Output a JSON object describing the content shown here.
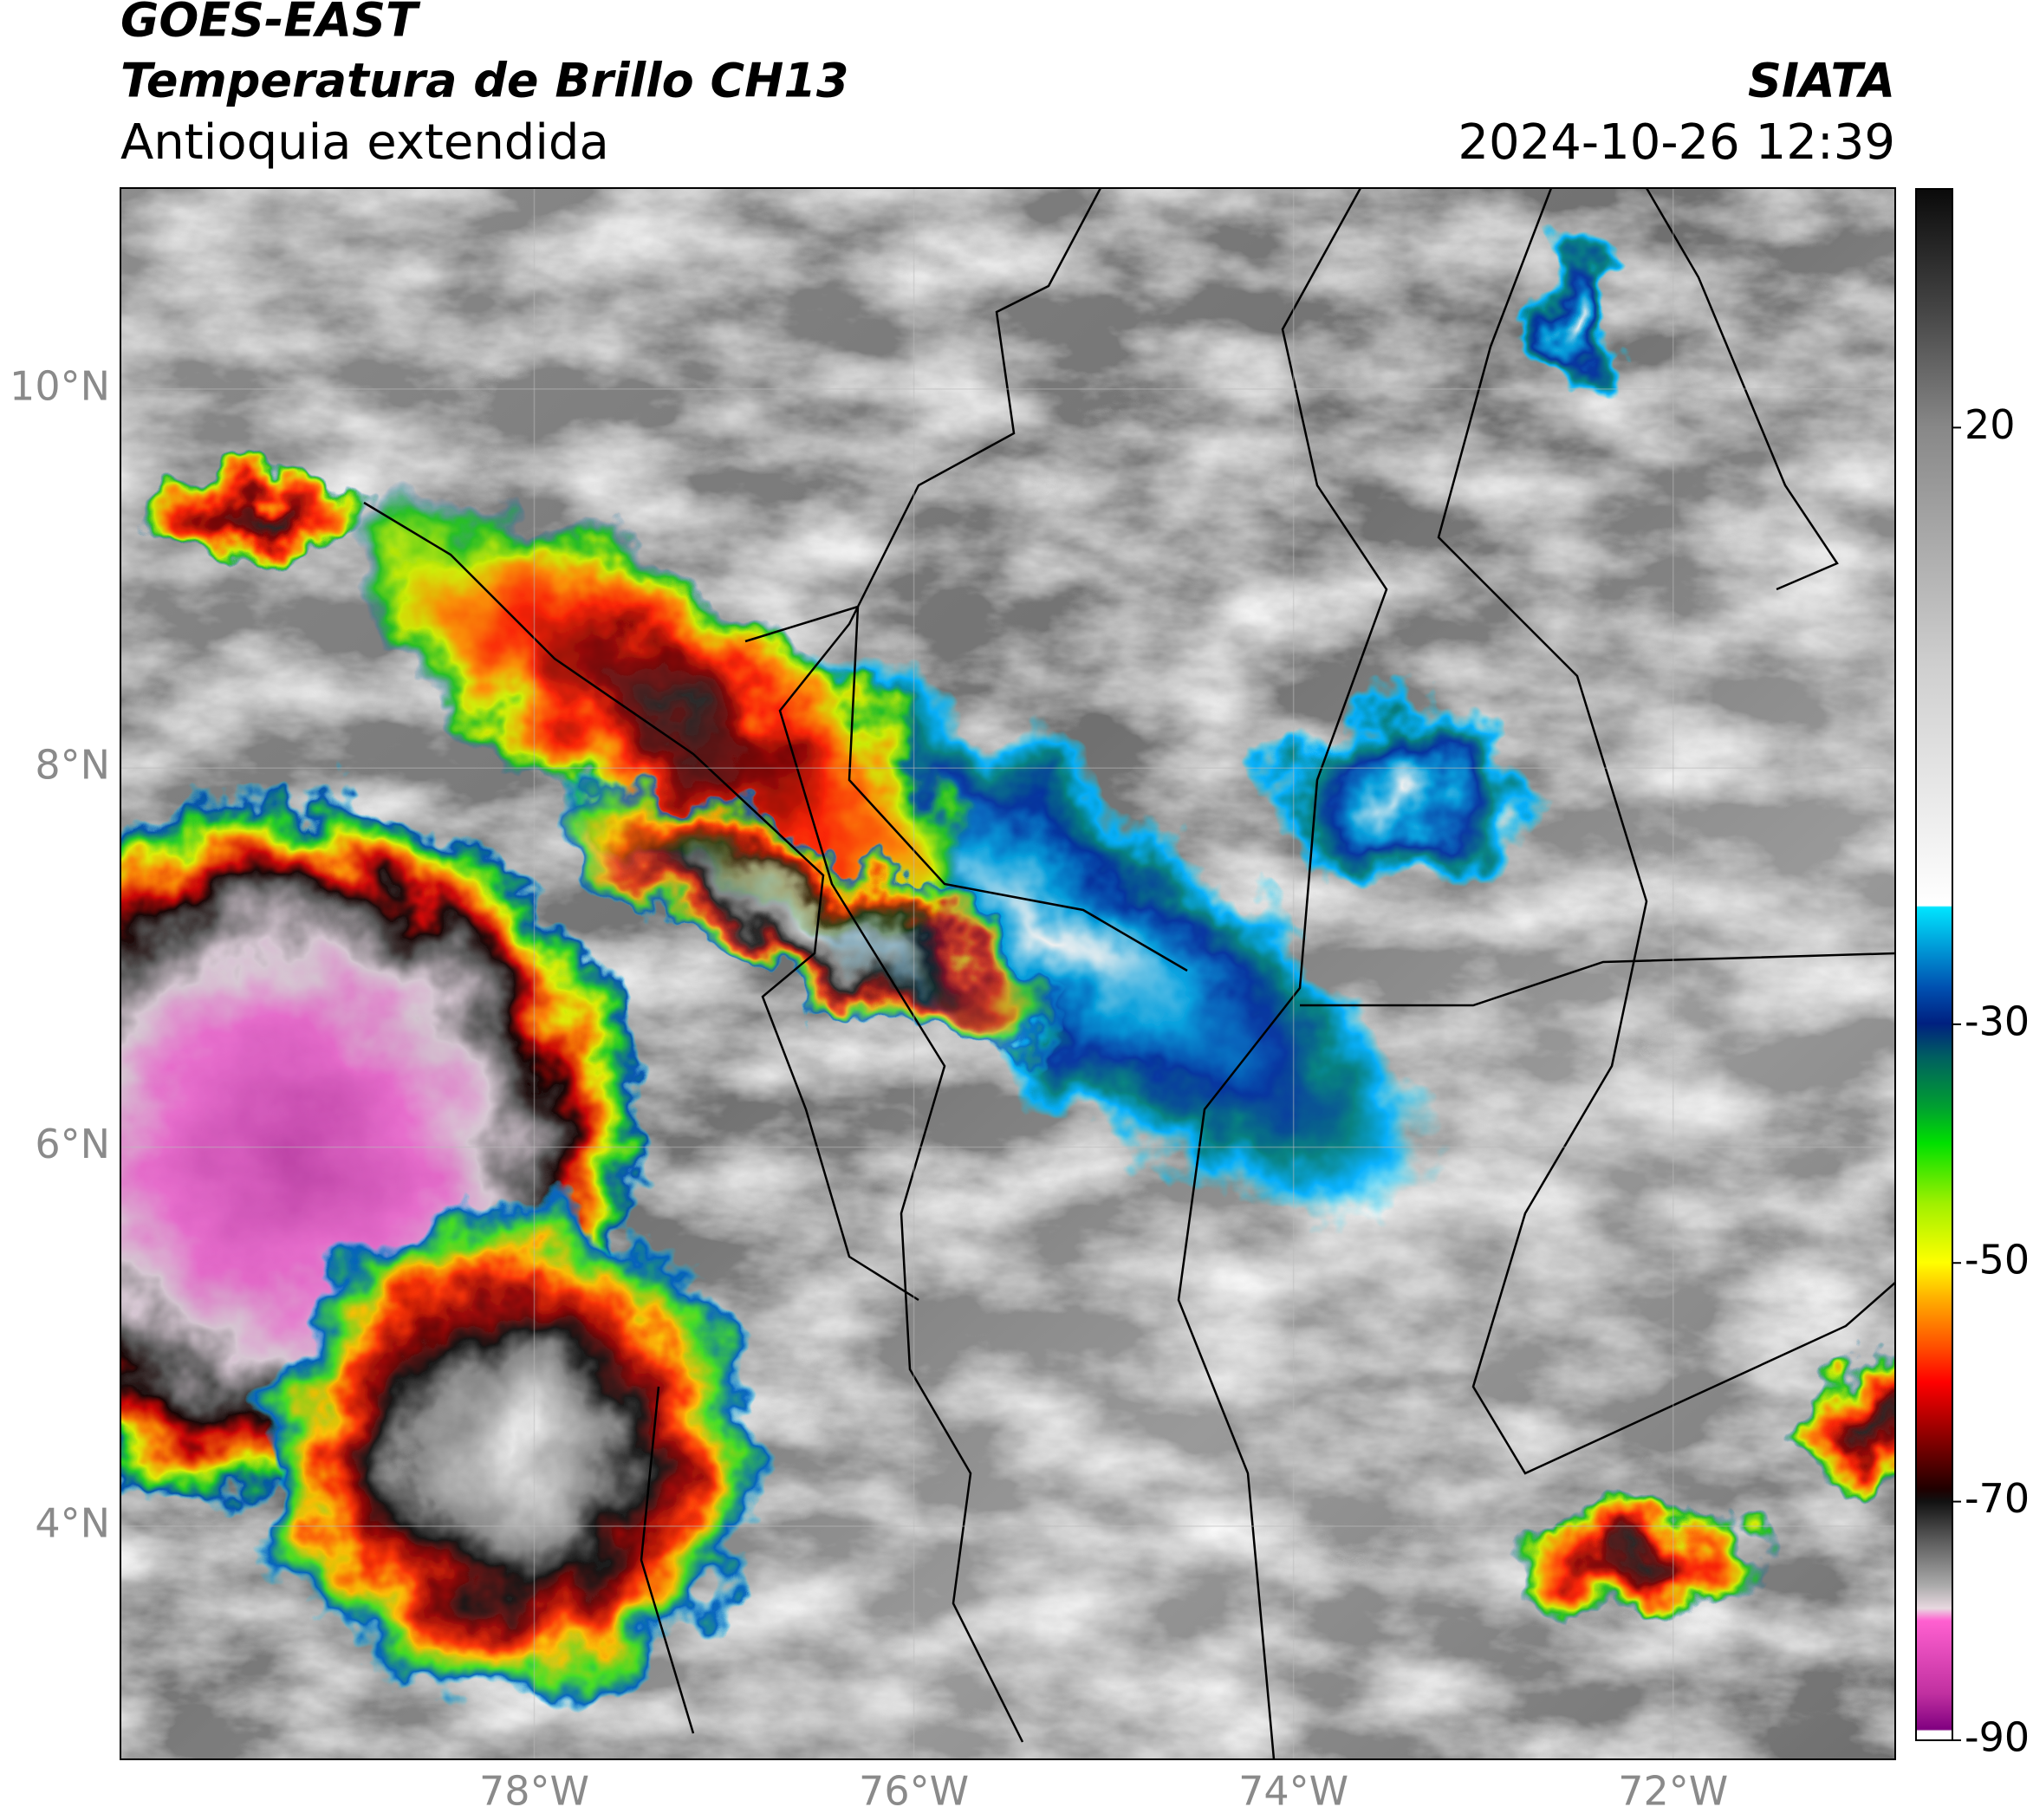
{
  "header": {
    "title": "GOES-EAST",
    "product": "Temperatura de Brillo CH13",
    "region": "Antioquia extendida",
    "source": "SIATA",
    "datetime": "2024-10-26 12:39"
  },
  "map": {
    "xlim": [
      -80.18,
      -70.83
    ],
    "ylim": [
      2.77,
      11.06
    ],
    "xticks": [
      {
        "value": -78,
        "label": "78°W"
      },
      {
        "value": -76,
        "label": "76°W"
      },
      {
        "value": -74,
        "label": "74°W"
      },
      {
        "value": -72,
        "label": "72°W"
      }
    ],
    "yticks": [
      {
        "value": 10,
        "label": "10°N"
      },
      {
        "value": 8,
        "label": "8°N"
      },
      {
        "value": 6,
        "label": "6°N"
      },
      {
        "value": 4,
        "label": "4°N"
      }
    ],
    "grid": true
  },
  "colorbar": {
    "lim": [
      -90,
      40
    ],
    "ticks": [
      20,
      -30,
      -50,
      -70,
      -90
    ]
  }
}
